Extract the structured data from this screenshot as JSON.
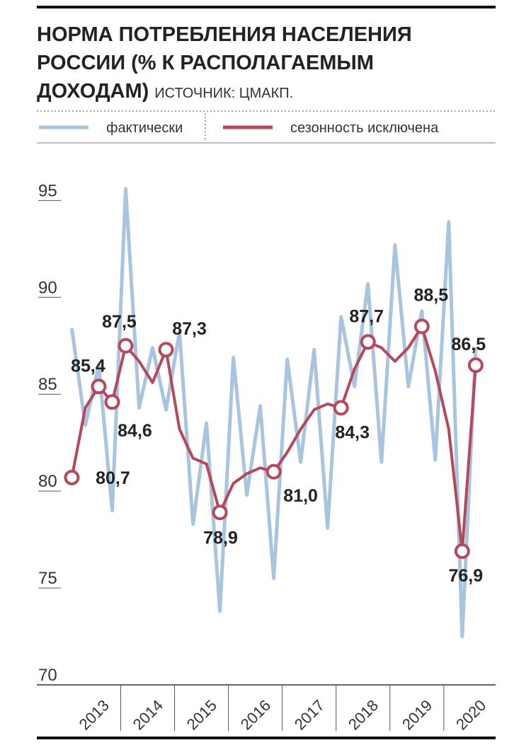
{
  "chart_data": {
    "type": "line",
    "title": [
      "НОРМА ПОТРЕБЛЕНИЯ НАСЕЛЕНИЯ",
      "РОССИИ (% К РАСПОЛАГАЕМЫМ",
      "ДОХОДАМ)"
    ],
    "source": "ИСТОЧНИК: ЦМАКП.",
    "x": [
      2013,
      2013.25,
      2013.5,
      2013.75,
      2014,
      2014.25,
      2014.5,
      2014.75,
      2015,
      2015.25,
      2015.5,
      2015.75,
      2016,
      2016.25,
      2016.5,
      2016.75,
      2017,
      2017.25,
      2017.5,
      2017.75,
      2018,
      2018.25,
      2018.5,
      2018.75,
      2019,
      2019.25,
      2019.5,
      2019.75,
      2020,
      2020.25,
      2020.5
    ],
    "series": [
      {
        "name": "фактически",
        "color": "#a9c4de",
        "values": [
          88.4,
          83.4,
          86.5,
          79.0,
          95.6,
          84.3,
          87.4,
          84.2,
          88.2,
          78.3,
          83.5,
          73.8,
          86.9,
          79.8,
          84.4,
          75.5,
          86.8,
          81.5,
          87.3,
          78.1,
          89.0,
          85.4,
          90.7,
          81.5,
          92.7,
          85.4,
          89.3,
          81.6,
          93.9,
          72.5,
          87.4
        ]
      },
      {
        "name": "сезонность исключена",
        "color": "#b5485a",
        "values": [
          80.7,
          84.3,
          85.4,
          84.6,
          87.5,
          86.7,
          85.6,
          87.3,
          83.2,
          81.7,
          81.4,
          78.9,
          80.4,
          80.9,
          81.2,
          81.0,
          82.0,
          83.2,
          84.2,
          84.5,
          84.3,
          86.3,
          87.7,
          87.4,
          86.7,
          87.4,
          88.5,
          86.2,
          83.2,
          76.9,
          86.5
        ],
        "value_labels": [
          "80,7",
          null,
          "85,4",
          "84,6",
          "87,5",
          null,
          null,
          "87,3",
          null,
          null,
          null,
          "78,9",
          null,
          null,
          null,
          "81,0",
          null,
          null,
          null,
          null,
          "84,3",
          null,
          "87,7",
          null,
          null,
          null,
          "88,5",
          null,
          null,
          "76,9",
          "86,5"
        ]
      }
    ],
    "xlim": [
      2012.35,
      2020.87
    ],
    "xticks": [
      {
        "value": 2013,
        "label": "2013"
      },
      {
        "value": 2014,
        "label": "2014"
      },
      {
        "value": 2015,
        "label": "2015"
      },
      {
        "value": 2016,
        "label": "2016"
      },
      {
        "value": 2017,
        "label": "2017"
      },
      {
        "value": 2018,
        "label": "2018"
      },
      {
        "value": 2019,
        "label": "2019"
      },
      {
        "value": 2020,
        "label": "2020"
      }
    ],
    "ylim": [
      70,
      96
    ],
    "yticks": [
      70,
      75,
      80,
      85,
      90,
      95
    ]
  }
}
